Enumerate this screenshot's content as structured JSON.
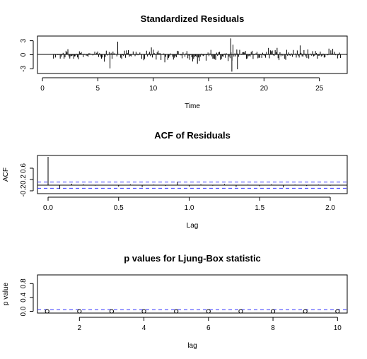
{
  "chart_data": [
    {
      "type": "line",
      "title": "Standardized Residuals",
      "xlabel": "Time",
      "ylabel": "",
      "xlim": [
        0,
        27
      ],
      "ylim": [
        -4,
        4
      ],
      "x_ticks": [
        "0",
        "5",
        "10",
        "15",
        "20",
        "25"
      ],
      "y_ticks": [
        "3",
        "0",
        "-3"
      ],
      "style": "vertical lines from 0 (type h)",
      "n": 300,
      "x_start": 1,
      "x_end": 26.9,
      "extremes": [
        {
          "x": 6.8,
          "y": 2.8
        },
        {
          "x": 17.0,
          "y": 3.5
        },
        {
          "x": 17.1,
          "y": -3.6
        },
        {
          "x": 6.1,
          "y": -2.9
        },
        {
          "x": 17.6,
          "y": -3.1
        }
      ]
    },
    {
      "type": "bar",
      "title": "ACF of Residuals",
      "xlabel": "Lag",
      "ylabel": "ACF",
      "xlim": [
        0,
        2.05
      ],
      "ylim": [
        -0.25,
        1.0
      ],
      "x_ticks": [
        "0.0",
        "0.5",
        "1.0",
        "1.5",
        "2.0"
      ],
      "y_ticks": [
        "-0.2",
        "0.2",
        "0.6"
      ],
      "ci_bound": 0.11,
      "lags": [
        0,
        0.083,
        0.167,
        0.25,
        0.333,
        0.417,
        0.5,
        0.583,
        0.667,
        0.75,
        0.833,
        0.917,
        1.0,
        1.083,
        1.167,
        1.25,
        1.333,
        1.417,
        1.5,
        1.583,
        1.667,
        1.75,
        1.833,
        1.917,
        2.0
      ],
      "values": [
        1.0,
        -0.13,
        0.05,
        0.03,
        -0.02,
        0.01,
        -0.05,
        0.03,
        -0.07,
        0.02,
        -0.03,
        0.12,
        -0.05,
        0.03,
        -0.02,
        0.04,
        -0.06,
        0.02,
        -0.04,
        0.03,
        -0.08,
        0.02,
        -0.03,
        0.02,
        -0.02
      ]
    },
    {
      "type": "scatter",
      "title": "p values for Ljung-Box statistic",
      "xlabel": "lag",
      "ylabel": "p value",
      "xlim": [
        0.7,
        10.3
      ],
      "ylim": [
        -0.05,
        1.05
      ],
      "x_ticks": [
        "2",
        "4",
        "6",
        "8",
        "10"
      ],
      "y_ticks": [
        "0.0",
        "0.4",
        "0.8"
      ],
      "reference_line": 0.05,
      "x": [
        1,
        2,
        3,
        4,
        5,
        6,
        7,
        8,
        9,
        10
      ],
      "values": [
        0.0,
        0.0,
        0.0,
        0.0,
        0.0,
        0.0,
        0.0,
        0.0,
        0.0,
        0.0
      ]
    }
  ]
}
